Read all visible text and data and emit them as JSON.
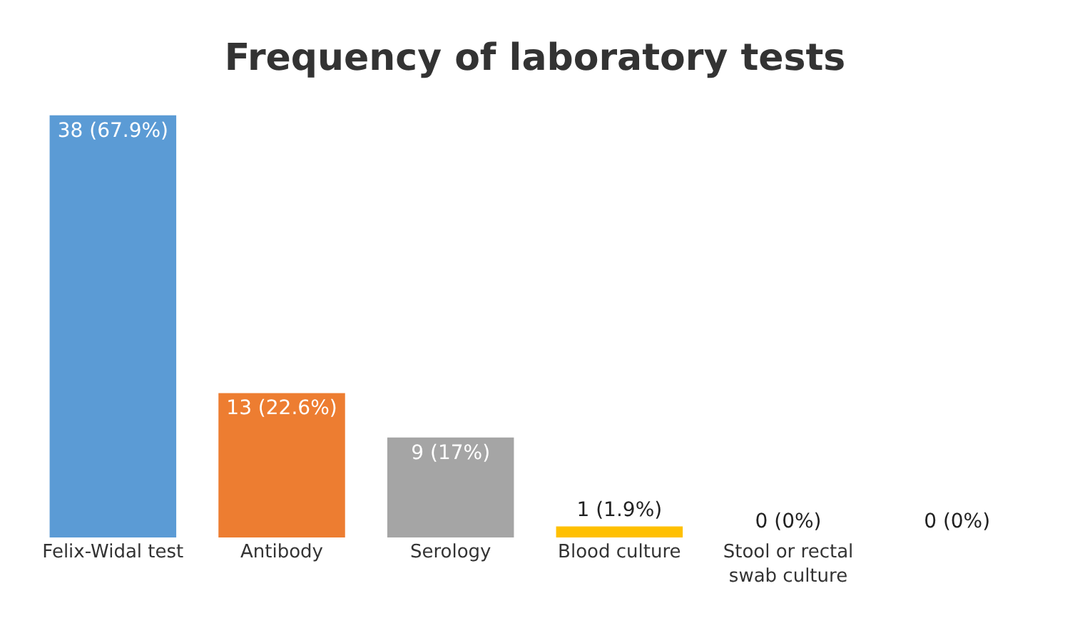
{
  "chart_data": {
    "type": "bar",
    "title": "Frequency of laboratory tests",
    "categories": [
      "Felix-Widal test",
      "Antibody",
      "Serology",
      "Blood culture",
      "Stool or rectal swab culture",
      null
    ],
    "values": [
      38,
      13,
      9,
      1,
      0,
      0
    ],
    "value_labels": [
      "38 (67.9%)",
      "13 (22.6%)",
      "9 (17%)",
      "1 (1.9%)",
      "0 (0%)",
      "0 (0%)"
    ],
    "colors": [
      "#5b9bd5",
      "#ed7d31",
      "#a5a5a5",
      "#ffc000",
      "#a5a5a5",
      "#a5a5a5"
    ]
  }
}
